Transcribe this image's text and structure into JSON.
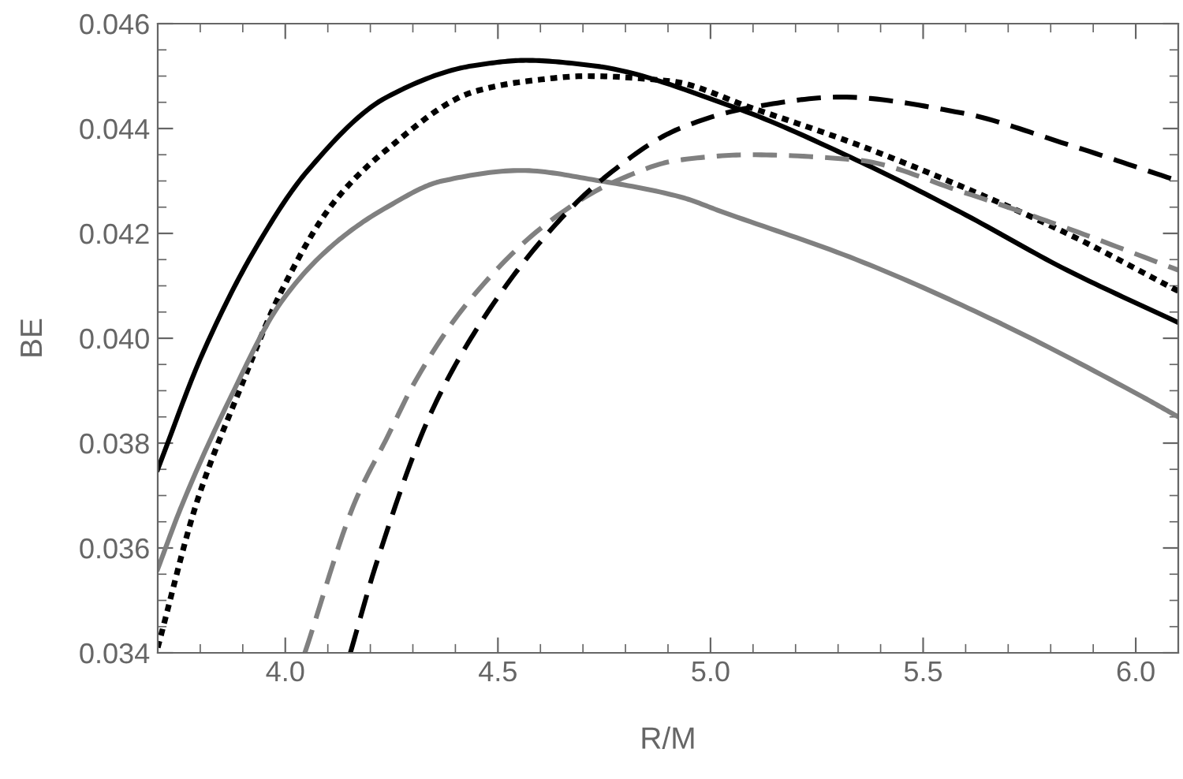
{
  "chart_data": {
    "type": "line",
    "xlabel": "R/M",
    "ylabel": "BE",
    "xlim": [
      3.7,
      6.1
    ],
    "xticks": [
      {
        "value": 4,
        "label": "4.0"
      },
      4.5,
      {
        "value": 5,
        "label": "5.0"
      },
      5.5,
      {
        "value": 6,
        "label": "6.0"
      }
    ],
    "ylim": [
      0.034,
      0.046
    ],
    "yticks": [
      0.034,
      0.036,
      0.038,
      {
        "value": 0.04,
        "label": "0.040"
      },
      0.042,
      0.044,
      0.046
    ],
    "grid": false,
    "legend": false,
    "marker": "none",
    "series": [
      {
        "color": "#000000",
        "line_style": "solid",
        "x": [
          3.7,
          3.805,
          3.929,
          4.053,
          4.239,
          4.443,
          4.566,
          4.722,
          5.057,
          5.343,
          5.589,
          5.838,
          6.1
        ],
        "values": [
          0.0375,
          0.0397,
          0.0417,
          0.0432,
          0.0446,
          0.0452,
          0.0453,
          0.0452,
          0.0444,
          0.0434,
          0.0424,
          0.0413,
          0.0403
        ]
      },
      {
        "color": "#000000",
        "line_style": "dotted",
        "x": [
          3.7,
          3.793,
          3.892,
          3.991,
          4.115,
          4.239,
          4.443,
          4.566,
          4.711,
          4.908,
          5.094,
          5.343,
          5.589,
          5.838,
          6.1
        ],
        "values": [
          0.0341,
          0.0369,
          0.039,
          0.0409,
          0.0426,
          0.0436,
          0.0447,
          0.0449,
          0.045,
          0.0449,
          0.0444,
          0.0437,
          0.0429,
          0.042,
          0.0409
        ]
      },
      {
        "color": "#808080",
        "line_style": "solid",
        "x": [
          3.7,
          3.756,
          3.867,
          3.991,
          4.115,
          4.239,
          4.369,
          4.555,
          4.741,
          4.927,
          5.031,
          5.343,
          5.652,
          6.012,
          6.1
        ],
        "values": [
          0.0356,
          0.0368,
          0.0388,
          0.0407,
          0.0418,
          0.0425,
          0.043,
          0.0432,
          0.043,
          0.0427,
          0.0424,
          0.0415,
          0.0404,
          0.0389,
          0.0385
        ]
      },
      {
        "color": "#808080",
        "line_style": "dashed",
        "x": [
          4.046,
          4.165,
          4.239,
          4.307,
          4.431,
          4.617,
          4.778,
          4.927,
          5.094,
          5.343,
          5.589,
          5.838,
          6.1
        ],
        "values": [
          0.034,
          0.0369,
          0.0381,
          0.0392,
          0.0407,
          0.0422,
          0.043,
          0.0434,
          0.0435,
          0.0434,
          0.0428,
          0.0421,
          0.0413
        ]
      },
      {
        "color": "#000000",
        "line_style": "dashed",
        "x": [
          4.153,
          4.214,
          4.344,
          4.468,
          4.617,
          4.741,
          4.927,
          5.094,
          5.306,
          5.589,
          5.838,
          6.1
        ],
        "values": [
          0.034,
          0.0357,
          0.0386,
          0.0404,
          0.042,
          0.043,
          0.044,
          0.0444,
          0.0446,
          0.0443,
          0.0437,
          0.043
        ]
      }
    ]
  }
}
